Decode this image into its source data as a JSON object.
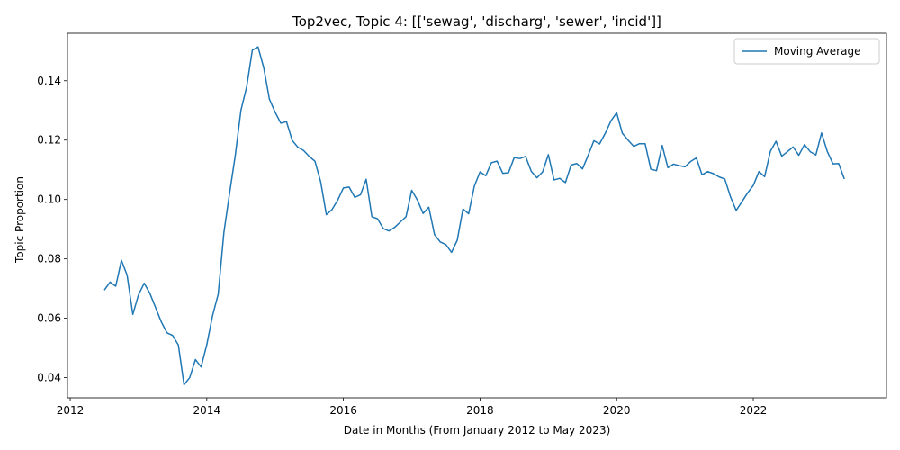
{
  "chart_data": {
    "type": "line",
    "title": "Top2vec, Topic 4: [['sewag', 'discharg', 'sewer', 'incid']]",
    "xlabel": "Date in Months (From January 2012 to May 2023)",
    "ylabel": "Topic Proportion",
    "xlim": [
      2011.96,
      2023.95
    ],
    "ylim": [
      0.0332,
      0.156
    ],
    "xticks": [
      2012,
      2014,
      2016,
      2018,
      2020,
      2022
    ],
    "xtick_labels": [
      "2012",
      "2014",
      "2016",
      "2018",
      "2020",
      "2022"
    ],
    "yticks": [
      0.04,
      0.06,
      0.08,
      0.1,
      0.12,
      0.14
    ],
    "ytick_labels": [
      "0.04",
      "0.06",
      "0.08",
      "0.10",
      "0.12",
      "0.14"
    ],
    "grid": false,
    "legend": {
      "position": "upper right",
      "entries": [
        "Moving Average"
      ]
    },
    "color": "#1f77b4",
    "series": [
      {
        "name": "Moving Average",
        "x": [
          "2012-07",
          "2012-08",
          "2012-09",
          "2012-10",
          "2012-11",
          "2012-12",
          "2013-01",
          "2013-02",
          "2013-03",
          "2013-04",
          "2013-05",
          "2013-06",
          "2013-07",
          "2013-08",
          "2013-09",
          "2013-10",
          "2013-11",
          "2013-12",
          "2014-01",
          "2014-02",
          "2014-03",
          "2014-04",
          "2014-05",
          "2014-06",
          "2014-07",
          "2014-08",
          "2014-09",
          "2014-10",
          "2014-11",
          "2014-12",
          "2015-01",
          "2015-02",
          "2015-03",
          "2015-04",
          "2015-05",
          "2015-06",
          "2015-07",
          "2015-08",
          "2015-09",
          "2015-10",
          "2015-11",
          "2015-12",
          "2016-01",
          "2016-02",
          "2016-03",
          "2016-04",
          "2016-05",
          "2016-06",
          "2016-07",
          "2016-08",
          "2016-09",
          "2016-10",
          "2016-11",
          "2016-12",
          "2017-01",
          "2017-02",
          "2017-03",
          "2017-04",
          "2017-05",
          "2017-06",
          "2017-07",
          "2017-08",
          "2017-09",
          "2017-10",
          "2017-11",
          "2017-12",
          "2018-01",
          "2018-02",
          "2018-03",
          "2018-04",
          "2018-05",
          "2018-06",
          "2018-07",
          "2018-08",
          "2018-09",
          "2018-10",
          "2018-11",
          "2018-12",
          "2019-01",
          "2019-02",
          "2019-03",
          "2019-04",
          "2019-05",
          "2019-06",
          "2019-07",
          "2019-08",
          "2019-09",
          "2019-10",
          "2019-11",
          "2019-12",
          "2020-01",
          "2020-02",
          "2020-03",
          "2020-04",
          "2020-05",
          "2020-06",
          "2020-07",
          "2020-08",
          "2020-09",
          "2020-10",
          "2020-11",
          "2020-12",
          "2021-01",
          "2021-02",
          "2021-03",
          "2021-04",
          "2021-05",
          "2021-06",
          "2021-07",
          "2021-08",
          "2021-09",
          "2021-10",
          "2021-11",
          "2021-12",
          "2022-01",
          "2022-02",
          "2022-03",
          "2022-04",
          "2022-05",
          "2022-06",
          "2022-07",
          "2022-08",
          "2022-09",
          "2022-10",
          "2022-11",
          "2022-12",
          "2023-01",
          "2023-02",
          "2023-03",
          "2023-04",
          "2023-05"
        ],
        "y": [
          0.0695,
          0.0722,
          0.0708,
          0.0795,
          0.0745,
          0.0613,
          0.0679,
          0.0718,
          0.0684,
          0.0636,
          0.0588,
          0.0551,
          0.0542,
          0.051,
          0.0376,
          0.04,
          0.0461,
          0.0436,
          0.0511,
          0.0608,
          0.0681,
          0.0888,
          0.1021,
          0.1148,
          0.1301,
          0.1379,
          0.1503,
          0.1514,
          0.1444,
          0.1338,
          0.1294,
          0.1257,
          0.1262,
          0.1199,
          0.1176,
          0.1165,
          0.1145,
          0.1129,
          0.106,
          0.0949,
          0.0966,
          0.0998,
          0.1039,
          0.1042,
          0.1007,
          0.1016,
          0.1068,
          0.0942,
          0.0935,
          0.0902,
          0.0894,
          0.0906,
          0.0924,
          0.0942,
          0.1031,
          0.0998,
          0.0953,
          0.0974,
          0.0882,
          0.0857,
          0.0848,
          0.0822,
          0.0863,
          0.0968,
          0.0952,
          0.1045,
          0.1093,
          0.108,
          0.1124,
          0.1129,
          0.1088,
          0.109,
          0.1141,
          0.1138,
          0.1145,
          0.1095,
          0.1073,
          0.1093,
          0.1151,
          0.1066,
          0.1071,
          0.1057,
          0.1116,
          0.1121,
          0.1103,
          0.1149,
          0.1198,
          0.1187,
          0.1223,
          0.1265,
          0.1292,
          0.1223,
          0.12,
          0.1179,
          0.1188,
          0.1188,
          0.1102,
          0.1097,
          0.1182,
          0.1107,
          0.1119,
          0.1114,
          0.111,
          0.1128,
          0.114,
          0.1083,
          0.1094,
          0.1087,
          0.1076,
          0.1069,
          0.1009,
          0.0963,
          0.0992,
          0.1022,
          0.1047,
          0.1094,
          0.1077,
          0.1162,
          0.1196,
          0.1146,
          0.1161,
          0.1177,
          0.1149,
          0.1185,
          0.1161,
          0.115,
          0.1224,
          0.1162,
          0.112,
          0.1121,
          0.1069
        ]
      }
    ]
  }
}
